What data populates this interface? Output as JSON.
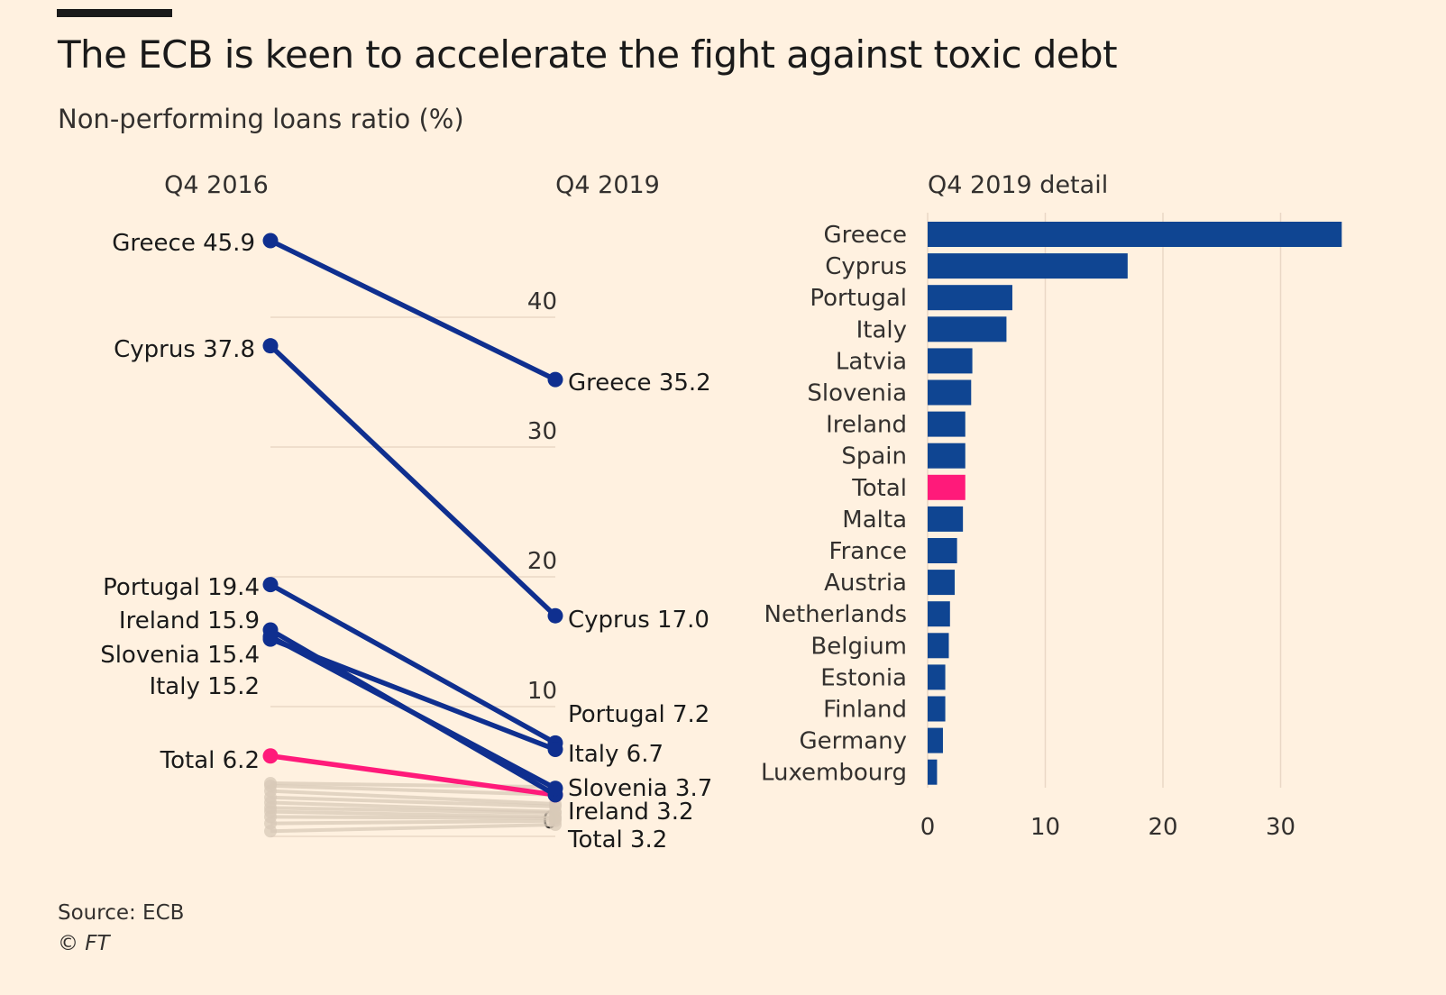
{
  "title": "The ECB is keen to accelerate the fight against toxic debt",
  "subtitle": "Non-performing loans ratio (%)",
  "source": "Source: ECB",
  "copyright": "© FT",
  "colors": {
    "background": "#fff1e0",
    "series": "#0f2f8f",
    "bar": "#0f4592",
    "highlight": "#ff1a7a",
    "grid": "#ead8c6",
    "faded": "#d8c9b8"
  },
  "chart_data": [
    {
      "type": "line",
      "subtype": "slope",
      "x": [
        "Q4 2016",
        "Q4 2019"
      ],
      "ylim": [
        0,
        47
      ],
      "yticks": [
        0,
        10,
        20,
        30,
        40
      ],
      "tick_labels": [
        "0",
        "10",
        "20",
        "30",
        "40"
      ],
      "series": [
        {
          "name": "Greece",
          "values": [
            45.9,
            35.2
          ],
          "highlight": false,
          "start_label": "Greece 45.9",
          "end_label": "Greece 35.2"
        },
        {
          "name": "Cyprus",
          "values": [
            37.8,
            17.0
          ],
          "highlight": false,
          "start_label": "Cyprus 37.8",
          "end_label": "Cyprus 17.0"
        },
        {
          "name": "Portugal",
          "values": [
            19.4,
            7.2
          ],
          "highlight": false,
          "start_label": "Portugal 19.4",
          "end_label": "Portugal 7.2"
        },
        {
          "name": "Ireland",
          "values": [
            15.9,
            3.2
          ],
          "highlight": false,
          "start_label": "Ireland 15.9",
          "end_label": "Ireland 3.2"
        },
        {
          "name": "Slovenia",
          "values": [
            15.4,
            3.7
          ],
          "highlight": false,
          "start_label": "Slovenia 15.4",
          "end_label": "Slovenia 3.7"
        },
        {
          "name": "Italy",
          "values": [
            15.2,
            6.7
          ],
          "highlight": false,
          "start_label": "Italy 15.2",
          "end_label": "Italy 6.7"
        },
        {
          "name": "Total",
          "values": [
            6.2,
            3.2
          ],
          "highlight": true,
          "start_label": "Total 6.2",
          "end_label": "Total 3.2"
        }
      ],
      "background_series": [
        [
          4.1,
          3.8
        ],
        [
          3.9,
          3.2
        ],
        [
          3.5,
          2.5
        ],
        [
          3.0,
          2.3
        ],
        [
          2.6,
          1.9
        ],
        [
          2.2,
          1.8
        ],
        [
          1.9,
          1.5
        ],
        [
          1.5,
          1.4
        ],
        [
          1.0,
          1.2
        ],
        [
          0.4,
          0.9
        ]
      ]
    },
    {
      "type": "bar",
      "orientation": "horizontal",
      "title": "Q4 2019 detail",
      "categories": [
        "Greece",
        "Cyprus",
        "Portugal",
        "Italy",
        "Latvia",
        "Slovenia",
        "Ireland",
        "Spain",
        "Total",
        "Malta",
        "France",
        "Austria",
        "Netherlands",
        "Belgium",
        "Estonia",
        "Finland",
        "Germany",
        "Luxembourg"
      ],
      "values": [
        35.2,
        17.0,
        7.2,
        6.7,
        3.8,
        3.7,
        3.2,
        3.2,
        3.2,
        3.0,
        2.5,
        2.3,
        1.9,
        1.8,
        1.5,
        1.5,
        1.3,
        0.8
      ],
      "highlight": [
        "Total"
      ],
      "xlim": [
        0,
        36
      ],
      "xticks": [
        0,
        10,
        20,
        30
      ],
      "tick_labels": [
        "0",
        "10",
        "20",
        "30"
      ]
    }
  ]
}
